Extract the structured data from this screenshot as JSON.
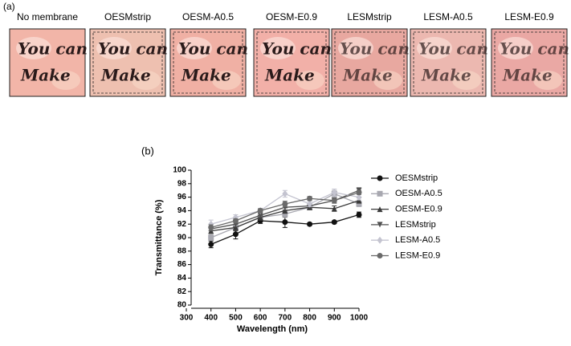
{
  "panel_a": {
    "label": "(a)",
    "image_text": [
      "You can",
      "Make"
    ],
    "images": [
      "No membrane",
      "OESMstrip",
      "OESM-A0.5",
      "OESM-E0.9",
      "LESMstrip",
      "LESM-A0.5",
      "LESM-E0.9"
    ]
  },
  "chart_data": {
    "type": "line",
    "panel_label": "(b)",
    "x_label": "Wavelength (nm)",
    "y_label": "Transmittance (%)",
    "x": [
      400,
      500,
      600,
      700,
      800,
      900,
      1000
    ],
    "xlim": [
      300,
      1000
    ],
    "xticks": [
      300,
      400,
      500,
      600,
      700,
      800,
      900,
      1000
    ],
    "ylim": [
      80,
      100
    ],
    "yticks": [
      80,
      82,
      84,
      86,
      88,
      90,
      92,
      94,
      96,
      98,
      100
    ],
    "legend": "right",
    "series": [
      {
        "name": "OESMstrip",
        "color": "#111111",
        "marker": "circle",
        "values": [
          89,
          90.5,
          92.5,
          92.3,
          92,
          92.3,
          93.4
        ],
        "errors": [
          0.5,
          0.7,
          0.4,
          0.8,
          0.2,
          0.2,
          0.4
        ]
      },
      {
        "name": "OESM-A0.5",
        "color": "#a8a8b0",
        "marker": "square",
        "values": [
          90,
          91.5,
          93,
          93.5,
          94.5,
          96.5,
          95
        ],
        "errors": [
          0.4,
          0.4,
          0.3,
          0.5,
          0.4,
          0.5,
          0.4
        ]
      },
      {
        "name": "OESM-E0.9",
        "color": "#3a3a3a",
        "marker": "triangle-up",
        "values": [
          91,
          91.5,
          93,
          94,
          94.5,
          94.3,
          95.5
        ],
        "errors": [
          0.4,
          0.5,
          0.3,
          0.4,
          0.3,
          0.4,
          0.4
        ]
      },
      {
        "name": "LESMstrip",
        "color": "#505050",
        "marker": "triangle-down",
        "values": [
          91.3,
          92,
          93.3,
          94.5,
          94.7,
          95.5,
          97
        ],
        "errors": [
          0.3,
          0.4,
          0.3,
          0.4,
          0.3,
          0.4,
          0.4
        ]
      },
      {
        "name": "LESM-A0.5",
        "color": "#c4c4d0",
        "marker": "diamond",
        "values": [
          92,
          93,
          94,
          96.5,
          95,
          96.7,
          96
        ],
        "errors": [
          0.6,
          0.4,
          0.3,
          0.5,
          0.4,
          0.5,
          0.4
        ]
      },
      {
        "name": "LESM-E0.9",
        "color": "#6a6a6a",
        "marker": "circle",
        "values": [
          91.5,
          92.5,
          94,
          95,
          95.8,
          95.5,
          96.7
        ],
        "errors": [
          0.4,
          0.3,
          0.3,
          0.4,
          0.3,
          0.3,
          0.3
        ]
      }
    ]
  }
}
